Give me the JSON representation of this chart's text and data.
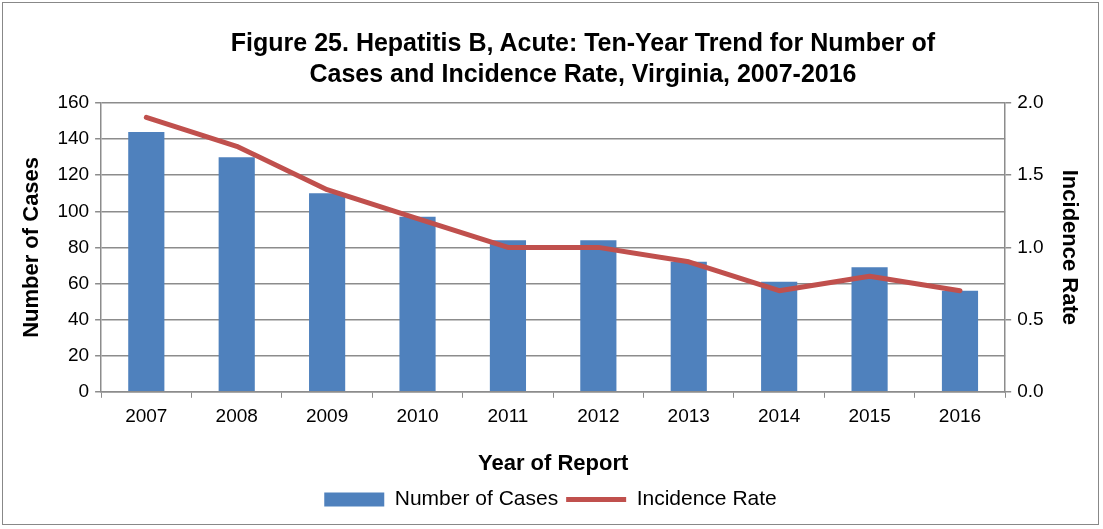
{
  "chart_data": {
    "type": "bar",
    "title": "Figure 25. Hepatitis B, Acute: Ten-Year Trend for Number of Cases and Incidence Rate, Virginia, 2007-2016",
    "xlabel": "Year of Report",
    "ylabel": "Number of Cases",
    "y2label": "Incidence Rate",
    "categories": [
      "2007",
      "2008",
      "2009",
      "2010",
      "2011",
      "2012",
      "2013",
      "2014",
      "2015",
      "2016"
    ],
    "series": [
      {
        "name": "Number of Cases",
        "color": "#4f81bd",
        "values": [
          144,
          130,
          110,
          97,
          84,
          84,
          72,
          61,
          69,
          56
        ]
      },
      {
        "name": "Incidence Rate",
        "type": "line",
        "axis": "y2",
        "color": "#c0504d",
        "values": [
          1.9,
          1.7,
          1.4,
          1.2,
          1.0,
          1.0,
          0.9,
          0.7,
          0.8,
          0.7
        ]
      }
    ],
    "ylim": [
      0,
      160
    ],
    "yticks": [
      0,
      20,
      40,
      60,
      80,
      100,
      120,
      140,
      160
    ],
    "y2lim": [
      0,
      2
    ],
    "y2ticks": [
      {
        "value": 0,
        "label": "0.0"
      },
      {
        "value": 0.5,
        "label": "0.5"
      },
      {
        "value": 1,
        "label": "1.0"
      },
      {
        "value": 1.5,
        "label": "1.5"
      },
      {
        "value": 2,
        "label": "2.0"
      }
    ],
    "grid": "y",
    "legend": "bottom",
    "marker": "none",
    "line_style": "solid"
  }
}
